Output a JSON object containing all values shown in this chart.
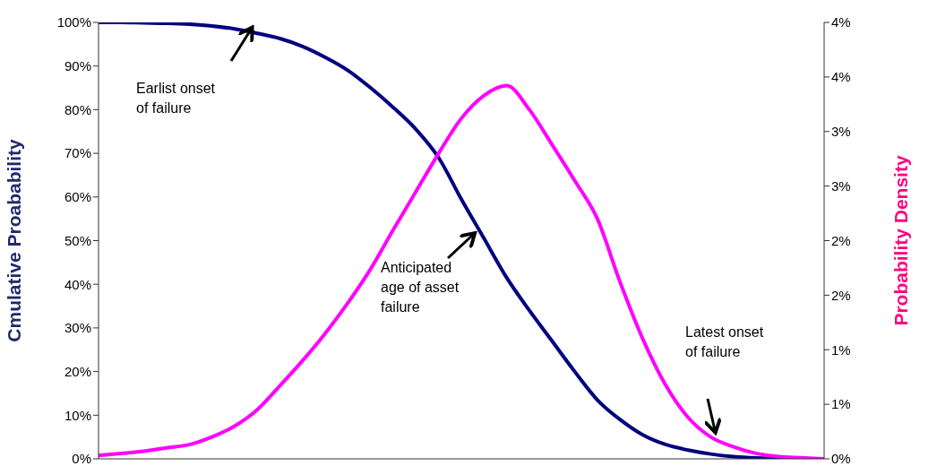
{
  "chart_data": {
    "type": "line",
    "ylabel": "Cmulative Proabability",
    "y2label": "Probability Density",
    "categories": [
      null,
      null,
      null,
      null,
      null,
      null,
      null,
      null,
      null,
      null,
      null,
      null,
      null,
      null,
      null,
      null,
      null,
      null,
      null,
      null,
      null,
      null,
      null,
      null,
      null,
      null,
      null,
      null,
      null,
      null,
      null,
      null,
      null
    ],
    "series": [
      {
        "color": "#000080",
        "values": [
          100,
          100,
          99.9,
          99.8,
          99.6,
          99.2,
          98.5,
          97.5,
          96.3,
          94.5,
          92,
          89,
          85,
          80.5,
          75.5,
          69,
          59.5,
          50.5,
          41.5,
          34,
          27,
          20,
          13.5,
          9,
          5.5,
          3.3,
          2,
          1.1,
          0.5,
          0.2,
          0.1,
          0,
          0
        ]
      },
      {
        "color": "#ff00ff",
        "axis": "y2",
        "values": [
          0.03,
          0.05,
          0.07,
          0.1,
          0.13,
          0.2,
          0.3,
          0.45,
          0.67,
          0.9,
          1.15,
          1.43,
          1.74,
          2.1,
          2.45,
          2.8,
          3.12,
          3.33,
          3.42,
          3.2,
          2.88,
          2.55,
          2.2,
          1.62,
          1.1,
          0.68,
          0.38,
          0.2,
          0.11,
          0.05,
          0.02,
          0.01,
          0
        ]
      }
    ],
    "ylim": [
      0,
      100
    ],
    "yticks": [
      {
        "value": 0,
        "label": "0%"
      },
      {
        "value": 10,
        "label": "10%"
      },
      {
        "value": 20,
        "label": "20%"
      },
      {
        "value": 30,
        "label": "30%"
      },
      {
        "value": 40,
        "label": "40%"
      },
      {
        "value": 50,
        "label": "50%"
      },
      {
        "value": 60,
        "label": "60%"
      },
      {
        "value": 70,
        "label": "70%"
      },
      {
        "value": 80,
        "label": "80%"
      },
      {
        "value": 90,
        "label": "90%"
      },
      {
        "value": 100,
        "label": "100%"
      }
    ],
    "y2lim": [
      0,
      4
    ],
    "y2ticks": [
      {
        "value": 0,
        "label": "0%"
      },
      {
        "value": 0.5,
        "label": "1%"
      },
      {
        "value": 1,
        "label": "1%"
      },
      {
        "value": 1.5,
        "label": "2%"
      },
      {
        "value": 2,
        "label": "2%"
      },
      {
        "value": 2.5,
        "label": "3%"
      },
      {
        "value": 3,
        "label": "3%"
      },
      {
        "value": 3.5,
        "label": "4%"
      },
      {
        "value": 4,
        "label": "4%"
      }
    ],
    "annotations": [
      "Earlist onset of failure",
      "Anticipated age of asset failure",
      "Latest onset of failure"
    ]
  }
}
